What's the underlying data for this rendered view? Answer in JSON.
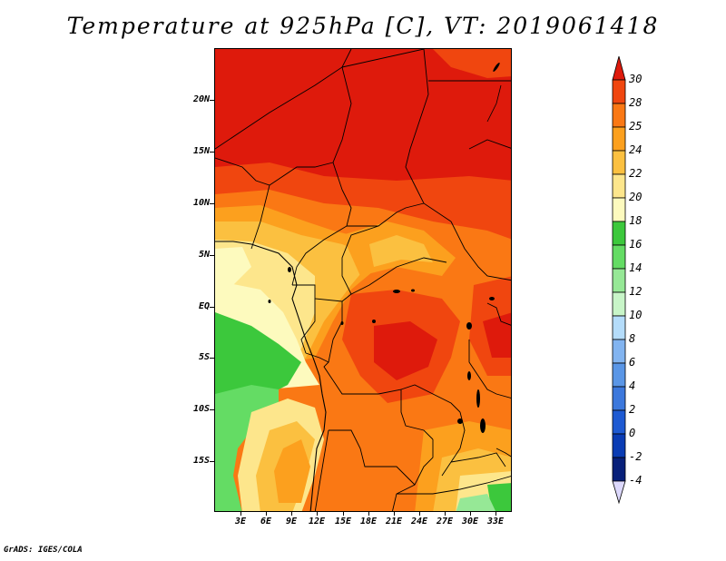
{
  "title": "Temperature at 925hPa [C], VT: 2019061418",
  "credit": "GrADS: IGES/COLA",
  "map": {
    "type": "filled-contour-map",
    "variable": "Temperature at 925hPa",
    "units": "C",
    "valid_time": "2019061418",
    "lat_ticks": [
      "20N",
      "15N",
      "10N",
      "5N",
      "EQ",
      "5S",
      "10S",
      "15S"
    ],
    "lon_ticks": [
      "3E",
      "6E",
      "9E",
      "12E",
      "15E",
      "18E",
      "21E",
      "24E",
      "27E",
      "30E",
      "33E"
    ]
  },
  "colorbar": {
    "levels": [
      "30",
      "28",
      "25",
      "24",
      "22",
      "20",
      "18",
      "16",
      "14",
      "12",
      "10",
      "8",
      "6",
      "4",
      "2",
      "0",
      "-2",
      "-4"
    ],
    "colors": [
      "#de1a0c",
      "#f0460f",
      "#fa7814",
      "#fca01e",
      "#fbc040",
      "#fde68c",
      "#fdfabe",
      "#3cc83c",
      "#64dc64",
      "#96e896",
      "#c8f5c8",
      "#b4dcfa",
      "#82b4f0",
      "#5a96e6",
      "#3c78dc",
      "#1e5ad2",
      "#0a3cb4",
      "#08207a",
      "#dcd8fc"
    ]
  }
}
